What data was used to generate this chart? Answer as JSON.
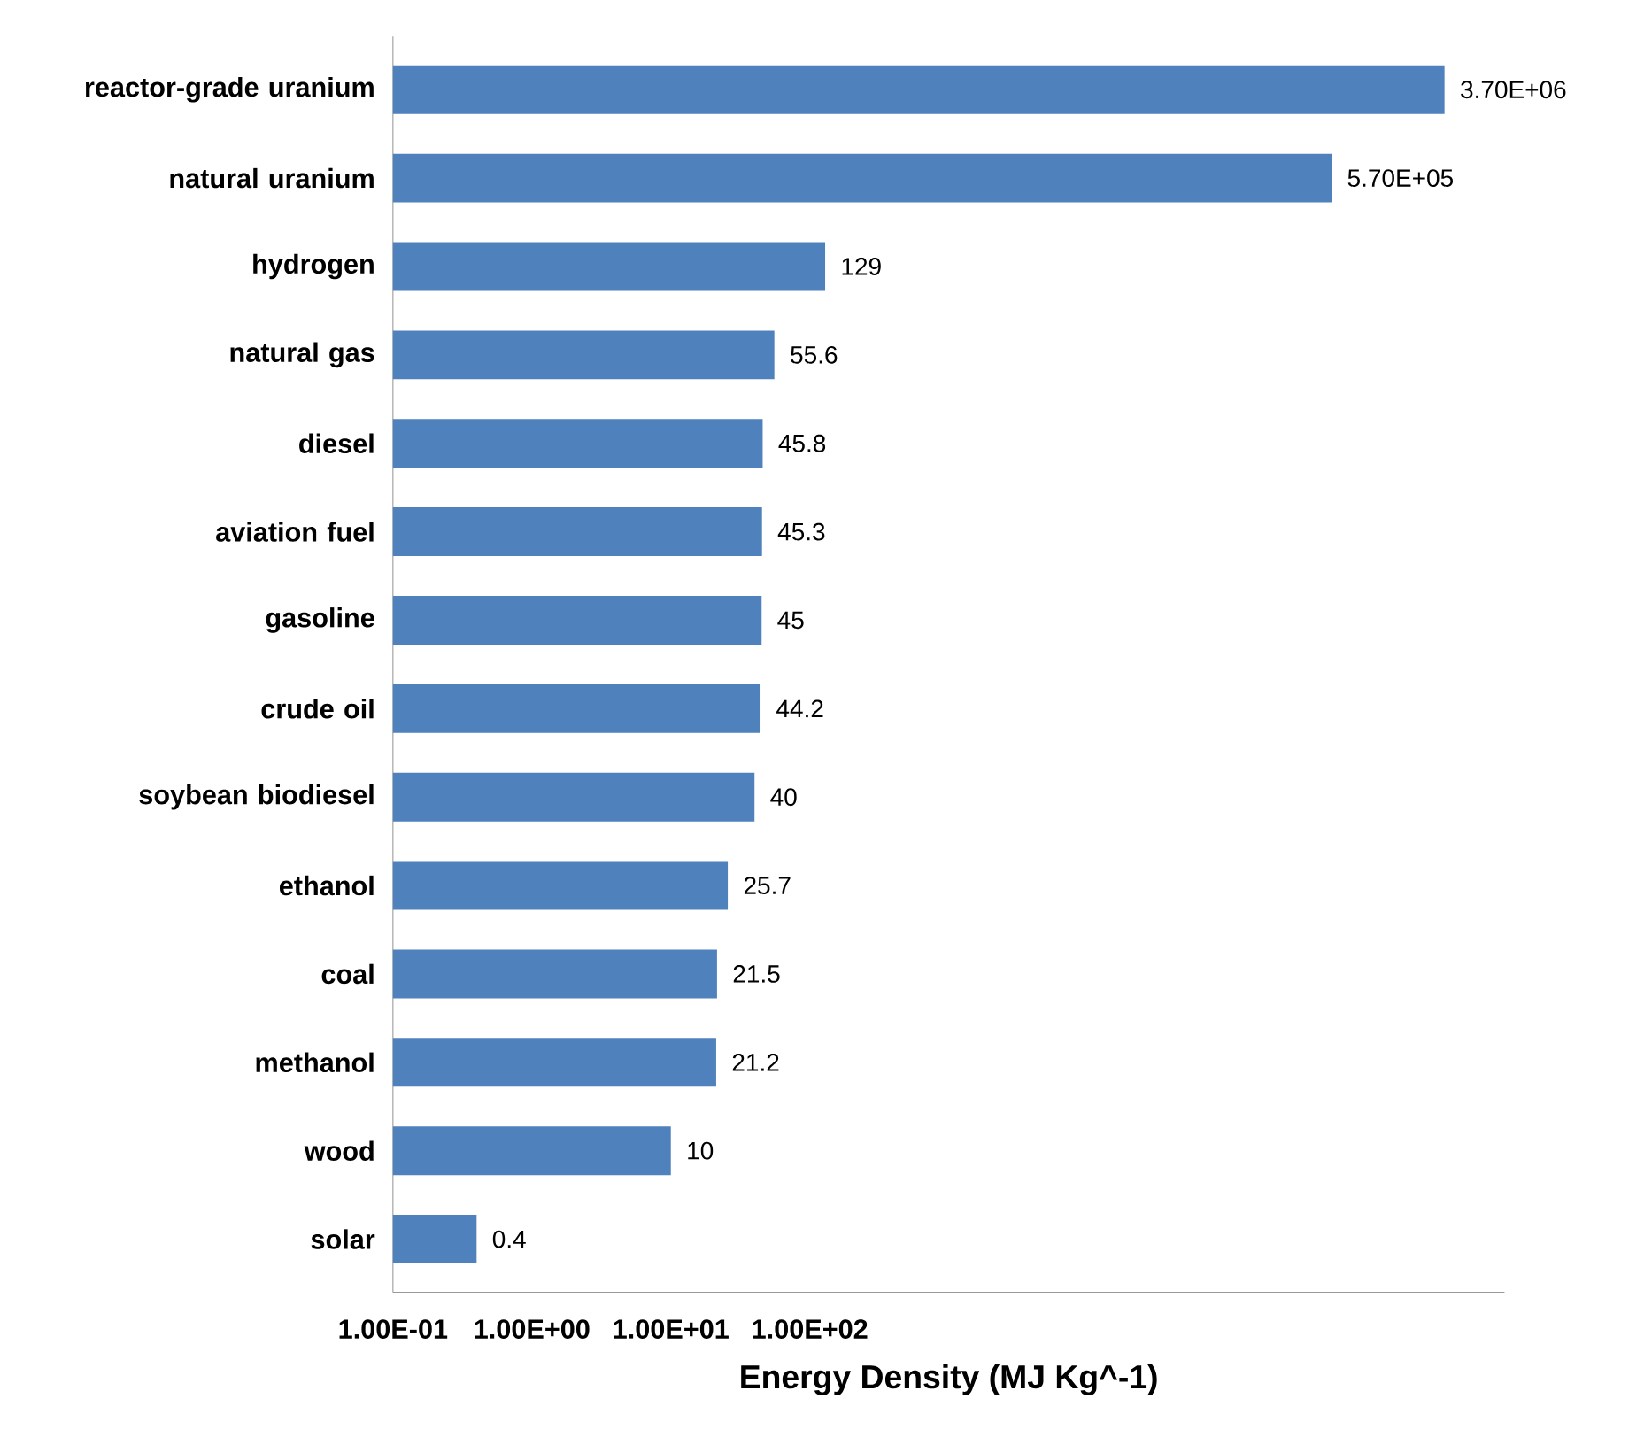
{
  "chart_data": {
    "type": "bar",
    "orientation": "horizontal",
    "log": "x",
    "xlabel": "Energy Density (MJ Kg^-1)",
    "categories": [
      "reactor-grade uranium",
      "natural uranium",
      "hydrogen",
      "natural gas",
      "diesel",
      "aviation fuel",
      "gasoline",
      "crude oil",
      "soybean biodiesel",
      "ethanol",
      "coal",
      "methanol",
      "wood",
      "solar"
    ],
    "values": [
      3700000,
      570000,
      129,
      55.6,
      45.8,
      45.3,
      45,
      44.2,
      40,
      25.7,
      21.5,
      21.2,
      10,
      0.4
    ],
    "value_labels": [
      "3.70E+06",
      "5.70E+05",
      "129",
      "55.6",
      "45.8",
      "45.3",
      "45",
      "44.2",
      "40",
      "25.7",
      "21.5",
      "21.2",
      "10",
      "0.4"
    ],
    "color": "#4f81bd",
    "xlim": [
      0.1,
      10000000
    ],
    "xticks": [
      {
        "value": 0.1,
        "label": "1.00E-01"
      },
      {
        "value": 1,
        "label": "1.00E+00"
      },
      {
        "value": 10,
        "label": "1.00E+01"
      },
      {
        "value": 100,
        "label": "1.00E+02"
      }
    ]
  }
}
